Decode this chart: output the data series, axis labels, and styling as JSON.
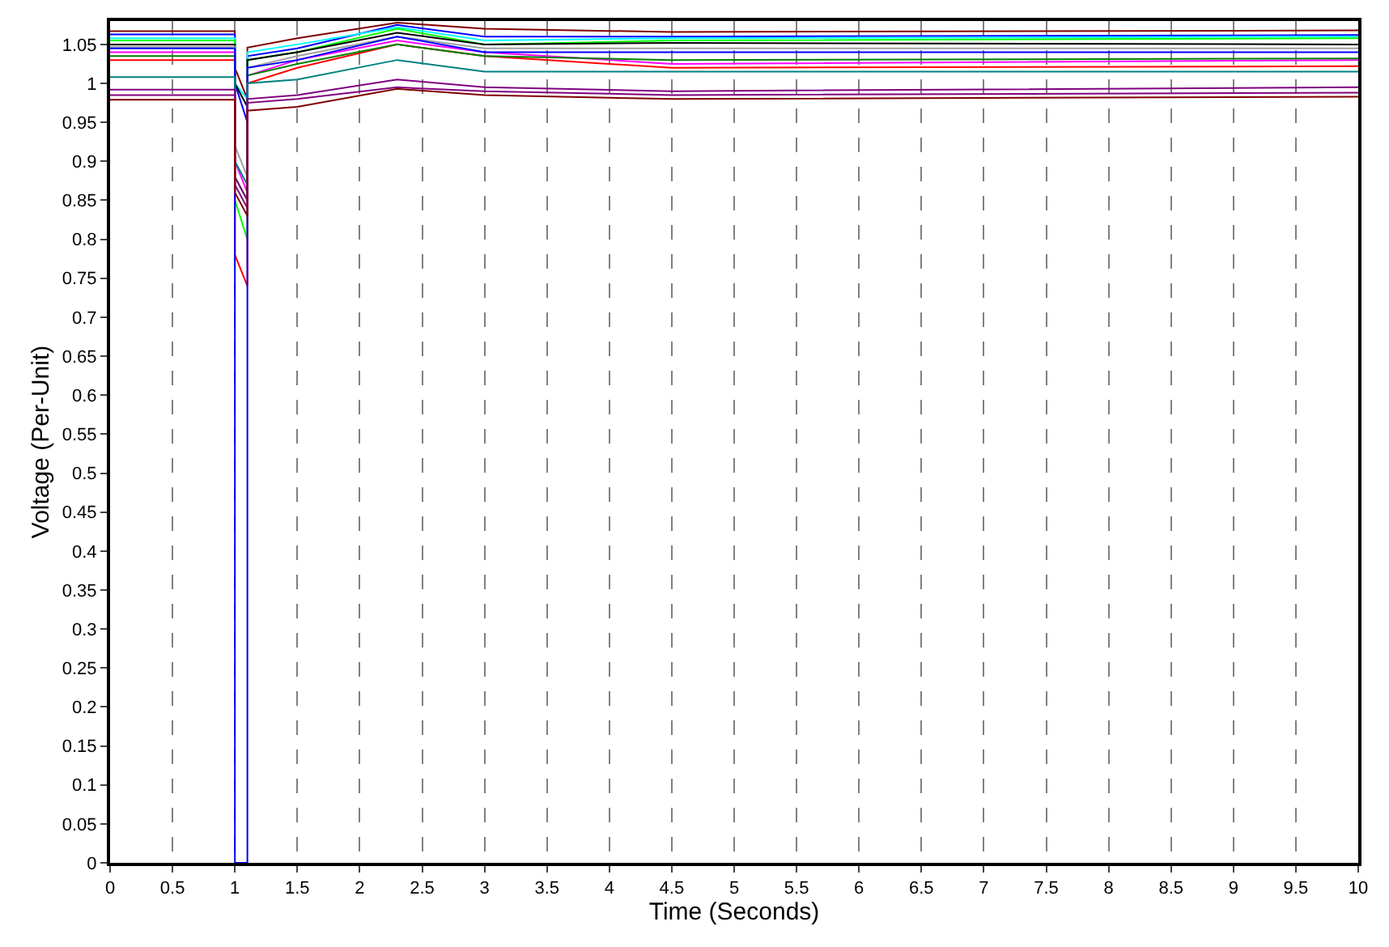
{
  "chart_data": {
    "type": "line",
    "xlabel": "Time (Seconds)",
    "ylabel": "Voltage (Per-Unit)",
    "x": [
      0,
      1,
      1,
      1.1,
      1.1,
      1.5,
      2.3,
      3,
      4.5,
      10
    ],
    "xlim": [
      0,
      10
    ],
    "ylim": [
      0,
      1.08
    ],
    "xticks": [
      0,
      0.5,
      1,
      1.5,
      2,
      2.5,
      3,
      3.5,
      4,
      4.5,
      5,
      5.5,
      6,
      6.5,
      7,
      7.5,
      8,
      8.5,
      9,
      9.5,
      10
    ],
    "yticks": [
      0,
      0.05,
      0.1,
      0.15,
      0.2,
      0.25,
      0.3,
      0.35,
      0.4,
      0.45,
      0.5,
      0.55,
      0.6,
      0.65,
      0.7,
      0.75,
      0.8,
      0.85,
      0.9,
      0.95,
      1,
      1.05
    ],
    "grid": "x",
    "marker": "none",
    "line_style": "solid",
    "series": [
      {
        "color": "#800000",
        "values": [
          1.067,
          1.067,
          1.02,
          0.98,
          1.046,
          1.058,
          1.078,
          1.07,
          1.066,
          1.068
        ]
      },
      {
        "color": "#0000ff",
        "values": [
          1.063,
          1.063,
          1.0,
          0.95,
          1.035,
          1.045,
          1.075,
          1.06,
          1.06,
          1.062
        ]
      },
      {
        "color": "#00ffff",
        "values": [
          1.058,
          1.058,
          1.0,
          0.98,
          1.04,
          1.05,
          1.072,
          1.055,
          1.058,
          1.06
        ]
      },
      {
        "color": "#00ff00",
        "values": [
          1.055,
          1.055,
          0.85,
          0.8,
          1.03,
          1.04,
          1.07,
          1.05,
          1.055,
          1.058
        ]
      },
      {
        "color": "#000000",
        "values": [
          1.05,
          1.05,
          1.0,
          0.97,
          1.03,
          1.04,
          1.065,
          1.05,
          1.052,
          1.05
        ]
      },
      {
        "color": "#a0a0a0",
        "values": [
          1.047,
          1.047,
          0.92,
          0.88,
          1.02,
          1.035,
          1.06,
          1.045,
          1.045,
          1.045
        ]
      },
      {
        "color": "#ff00ff",
        "values": [
          1.04,
          1.04,
          0.9,
          0.86,
          1.01,
          1.03,
          1.055,
          1.04,
          1.025,
          1.03
        ]
      },
      {
        "color": "#ff0000",
        "values": [
          1.03,
          1.03,
          0.78,
          0.74,
          1.0,
          1.02,
          1.05,
          1.035,
          1.02,
          1.022
        ]
      },
      {
        "color": "#008000",
        "values": [
          1.035,
          1.035,
          0.88,
          0.85,
          1.01,
          1.025,
          1.05,
          1.035,
          1.03,
          1.032
        ]
      },
      {
        "color": "#0000ff",
        "values": [
          1.045,
          1.045,
          0,
          0,
          1.02,
          1.03,
          1.06,
          1.04,
          1.04,
          1.04
        ]
      },
      {
        "color": "#008080",
        "values": [
          1.008,
          1.008,
          0.9,
          0.87,
          1.0,
          1.005,
          1.03,
          1.015,
          1.015,
          1.015
        ]
      },
      {
        "color": "#800080",
        "values": [
          0.992,
          0.992,
          0.88,
          0.85,
          0.98,
          0.985,
          1.005,
          0.995,
          0.99,
          0.995
        ]
      },
      {
        "color": "#800080",
        "values": [
          0.985,
          0.985,
          0.87,
          0.84,
          0.975,
          0.98,
          0.995,
          0.99,
          0.985,
          0.988
        ]
      },
      {
        "color": "#800000",
        "values": [
          0.979,
          0.979,
          0.86,
          0.83,
          0.965,
          0.97,
          0.993,
          0.985,
          0.98,
          0.983
        ]
      }
    ]
  }
}
